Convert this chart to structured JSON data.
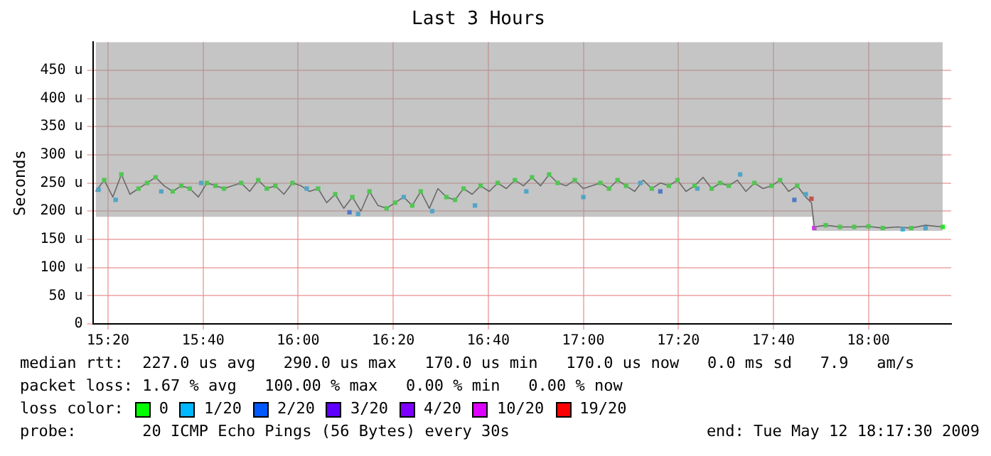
{
  "chart_data": {
    "type": "line",
    "title": "Last 3 Hours",
    "ylabel": "Seconds",
    "legend_title": "loss color:",
    "legend": "bottom",
    "grid": true,
    "line_style": "solid",
    "marker": "square",
    "xlim": [
      15.28,
      18.29
    ],
    "xticks": [
      {
        "value": 15.3333,
        "label": "15:20"
      },
      {
        "value": 15.6667,
        "label": "15:40"
      },
      {
        "value": 16,
        "label": "16:00"
      },
      {
        "value": 16.3333,
        "label": "16:20"
      },
      {
        "value": 16.6667,
        "label": "16:40"
      },
      {
        "value": 17,
        "label": "17:00"
      },
      {
        "value": 17.3333,
        "label": "17:20"
      },
      {
        "value": 17.6667,
        "label": "17:40"
      },
      {
        "value": 18,
        "label": "18:00"
      }
    ],
    "ylim": [
      0,
      500
    ],
    "yticks": [
      {
        "value": 0,
        "label": "0"
      },
      {
        "value": 50,
        "label": "50 u"
      },
      {
        "value": 100,
        "label": "100 u"
      },
      {
        "value": 150,
        "label": "150 u"
      },
      {
        "value": 200,
        "label": "200 u"
      },
      {
        "value": 250,
        "label": "250 u"
      },
      {
        "value": 300,
        "label": "300 u"
      },
      {
        "value": 350,
        "label": "350 u"
      },
      {
        "value": 400,
        "label": "400 u"
      },
      {
        "value": 450,
        "label": "450 u"
      }
    ],
    "series": [
      {
        "color": "#333333",
        "marker": "none",
        "x": [
          15.29,
          15.32,
          15.35,
          15.38,
          15.41,
          15.44,
          15.47,
          15.5,
          15.53,
          15.56,
          15.59,
          15.62,
          15.65,
          15.68,
          15.71,
          15.74,
          15.77,
          15.8,
          15.83,
          15.86,
          15.89,
          15.92,
          15.95,
          15.98,
          16.01,
          16.04,
          16.07,
          16.1,
          16.13,
          16.16,
          16.19,
          16.22,
          16.25,
          16.28,
          16.31,
          16.34,
          16.37,
          16.4,
          16.43,
          16.46,
          16.49,
          16.52,
          16.55,
          16.58,
          16.61,
          16.64,
          16.67,
          16.7,
          16.73,
          16.76,
          16.79,
          16.82,
          16.85,
          16.88,
          16.91,
          16.94,
          16.97,
          17,
          17.03,
          17.06,
          17.09,
          17.12,
          17.15,
          17.18,
          17.21,
          17.24,
          17.27,
          17.3,
          17.33,
          17.36,
          17.39,
          17.42,
          17.45,
          17.48,
          17.51,
          17.54,
          17.57,
          17.6,
          17.63,
          17.66,
          17.69,
          17.72,
          17.75,
          17.78,
          17.8,
          17.81,
          17.85,
          17.9,
          17.95,
          18,
          18.05,
          18.1,
          18.15,
          18.2,
          18.26
        ],
        "values": [
          235,
          255,
          225,
          265,
          230,
          240,
          250,
          260,
          245,
          235,
          245,
          240,
          225,
          250,
          245,
          240,
          245,
          250,
          235,
          255,
          240,
          245,
          230,
          250,
          245,
          235,
          240,
          215,
          230,
          205,
          225,
          200,
          235,
          210,
          205,
          215,
          225,
          210,
          235,
          205,
          240,
          225,
          220,
          240,
          230,
          245,
          235,
          250,
          240,
          255,
          245,
          260,
          245,
          265,
          250,
          245,
          255,
          240,
          245,
          250,
          240,
          255,
          245,
          235,
          255,
          240,
          250,
          245,
          255,
          235,
          245,
          260,
          240,
          250,
          245,
          255,
          235,
          250,
          240,
          245,
          255,
          235,
          245,
          225,
          215,
          172,
          175,
          172,
          172,
          173,
          170,
          172,
          170,
          175,
          172
        ],
        "lower": [
          190,
          190,
          190,
          190,
          190,
          190,
          190,
          190,
          190,
          190,
          190,
          190,
          190,
          190,
          190,
          190,
          190,
          190,
          190,
          190,
          190,
          190,
          190,
          190,
          190,
          190,
          190,
          190,
          190,
          190,
          190,
          190,
          190,
          190,
          190,
          190,
          190,
          190,
          190,
          190,
          190,
          190,
          190,
          190,
          190,
          190,
          190,
          190,
          190,
          190,
          190,
          190,
          190,
          190,
          190,
          190,
          190,
          190,
          190,
          190,
          190,
          190,
          190,
          190,
          190,
          190,
          190,
          190,
          190,
          190,
          190,
          190,
          190,
          190,
          190,
          190,
          190,
          190,
          190,
          190,
          190,
          190,
          190,
          190,
          190,
          165,
          165,
          165,
          165,
          165,
          165,
          165,
          165,
          165,
          165
        ],
        "upper": [
          500,
          500,
          500,
          500,
          500,
          500,
          500,
          500,
          500,
          500,
          500,
          500,
          500,
          500,
          500,
          500,
          500,
          500,
          500,
          500,
          500,
          500,
          500,
          500,
          500,
          500,
          500,
          500,
          500,
          500,
          500,
          500,
          500,
          500,
          500,
          500,
          500,
          500,
          500,
          500,
          500,
          500,
          500,
          500,
          500,
          500,
          500,
          500,
          500,
          500,
          500,
          500,
          500,
          500,
          500,
          500,
          500,
          500,
          500,
          500,
          500,
          500,
          500,
          500,
          500,
          500,
          500,
          500,
          500,
          500,
          500,
          500,
          500,
          500,
          500,
          500,
          500,
          500,
          500,
          500,
          500,
          500,
          500,
          500,
          500,
          500,
          500,
          500,
          500,
          500,
          500,
          500,
          500,
          500,
          500
        ]
      },
      {
        "type": "scatter",
        "name": "0",
        "color": "#00ff00",
        "x": [
          15.32,
          15.38,
          15.44,
          15.47,
          15.5,
          15.56,
          15.59,
          15.62,
          15.68,
          15.71,
          15.74,
          15.8,
          15.86,
          15.89,
          15.92,
          15.98,
          16.07,
          16.13,
          16.19,
          16.25,
          16.31,
          16.34,
          16.4,
          16.43,
          16.52,
          16.55,
          16.58,
          16.64,
          16.7,
          16.76,
          16.82,
          16.88,
          16.91,
          16.97,
          17.06,
          17.09,
          17.12,
          17.15,
          17.24,
          17.3,
          17.33,
          17.39,
          17.45,
          17.48,
          17.51,
          17.6,
          17.66,
          17.69,
          17.75,
          17.85,
          17.9,
          17.95,
          18,
          18.05,
          18.15,
          18.26
        ],
        "values": [
          255,
          265,
          240,
          250,
          260,
          235,
          245,
          240,
          250,
          245,
          240,
          250,
          255,
          240,
          245,
          250,
          240,
          230,
          225,
          235,
          205,
          215,
          210,
          235,
          225,
          220,
          240,
          245,
          250,
          255,
          260,
          265,
          250,
          255,
          250,
          240,
          255,
          245,
          240,
          245,
          255,
          245,
          240,
          250,
          245,
          250,
          245,
          255,
          245,
          175,
          172,
          172,
          173,
          170,
          170,
          172
        ]
      },
      {
        "type": "scatter",
        "name": "1/20",
        "color": "#00b8ff",
        "x": [
          15.3,
          15.36,
          15.52,
          15.66,
          16.03,
          16.21,
          16.37,
          16.47,
          16.62,
          16.8,
          17,
          17.2,
          17.4,
          17.55,
          17.78,
          18.12,
          18.2
        ],
        "values": [
          238,
          220,
          235,
          250,
          240,
          195,
          225,
          200,
          210,
          235,
          225,
          250,
          240,
          265,
          230,
          168,
          170
        ]
      },
      {
        "type": "scatter",
        "name": "2/20",
        "color": "#0059ff",
        "x": [
          16.18,
          17.27,
          17.74
        ],
        "values": [
          198,
          235,
          220
        ]
      },
      {
        "type": "scatter",
        "name": "3/20",
        "color": "#5e00ff"
      },
      {
        "type": "scatter",
        "name": "4/20",
        "color": "#7e00ff"
      },
      {
        "type": "scatter",
        "name": "10/20",
        "color": "#dd00ff",
        "x": [
          17.81
        ],
        "values": [
          170
        ]
      },
      {
        "type": "scatter",
        "name": "19/20",
        "color": "#ff0000",
        "x": [
          17.8
        ],
        "values": [
          222
        ]
      }
    ],
    "annotations": [
      "median rtt:  227.0 us avg   290.0 us max   170.0 us min   170.0 us now   0.0 ms sd   7.9   am/s",
      "packet loss: 1.67 % avg   100.00 % max   0.00 % min   0.00 % now",
      "probe:       20 ICMP Echo Pings (56 Bytes) every 30s",
      "end: Tue May 12 18:17:30 2009"
    ]
  }
}
